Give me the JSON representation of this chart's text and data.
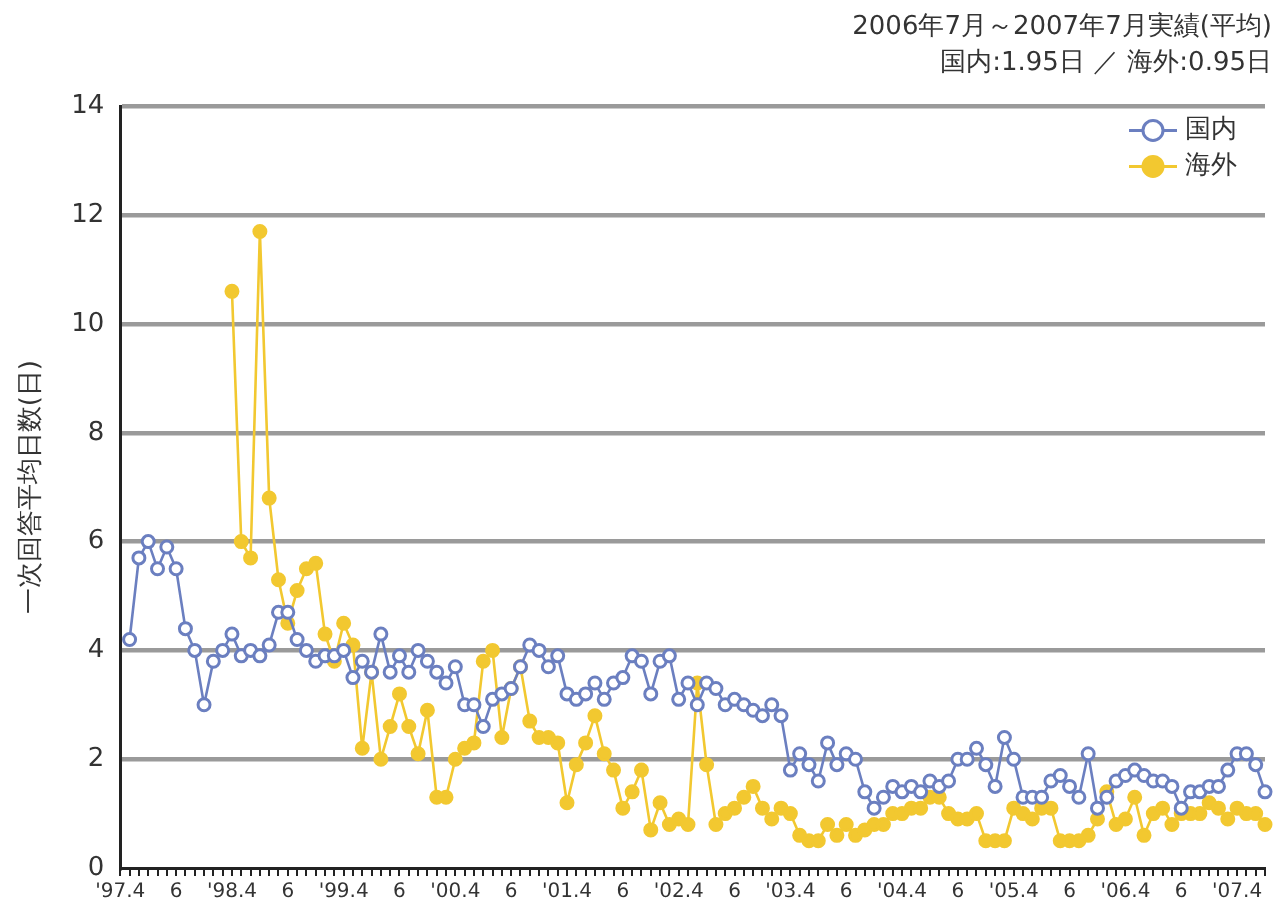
{
  "chart_data": {
    "type": "line",
    "title": "2006年7月～2007年7月実績(平均)",
    "subtitle": "国内:1.95日 ／ 海外:0.95日",
    "ylabel": "一次回答平均日数(日)",
    "categories": [
      "'97.4",
      null,
      null,
      null,
      null,
      null,
      "6",
      null,
      null,
      null,
      null,
      null,
      "'98.4",
      null,
      null,
      null,
      null,
      null,
      "6",
      null,
      null,
      null,
      null,
      null,
      "'99.4",
      null,
      null,
      null,
      null,
      null,
      "6",
      null,
      null,
      null,
      null,
      null,
      "'00.4",
      null,
      null,
      null,
      null,
      null,
      "6",
      null,
      null,
      null,
      null,
      null,
      "'01.4",
      null,
      null,
      null,
      null,
      null,
      "6",
      null,
      null,
      null,
      null,
      null,
      "'02.4",
      null,
      null,
      null,
      null,
      null,
      "6",
      null,
      null,
      null,
      null,
      null,
      "'03.4",
      null,
      null,
      null,
      null,
      null,
      "6",
      null,
      null,
      null,
      null,
      null,
      "'04.4",
      null,
      null,
      null,
      null,
      null,
      "6",
      null,
      null,
      null,
      null,
      null,
      "'05.4",
      null,
      null,
      null,
      null,
      null,
      "6",
      null,
      null,
      null,
      null,
      null,
      "'06.4",
      null,
      null,
      null,
      null,
      null,
      "6",
      null,
      null,
      null,
      null,
      null,
      "'07.4",
      null,
      null,
      null
    ],
    "series": [
      {
        "name": "国内",
        "color": "#6b7fc0",
        "values": [
          null,
          4.2,
          5.7,
          6.0,
          5.5,
          5.9,
          5.5,
          4.4,
          4.0,
          3.0,
          3.8,
          4.0,
          4.3,
          3.9,
          4.0,
          3.9,
          4.1,
          4.7,
          4.7,
          4.2,
          4.0,
          3.8,
          3.9,
          3.9,
          4.0,
          3.5,
          3.8,
          3.6,
          4.3,
          3.6,
          3.9,
          3.6,
          4.0,
          3.8,
          3.6,
          3.4,
          3.7,
          3.0,
          3.0,
          2.6,
          3.1,
          3.2,
          3.3,
          3.7,
          4.1,
          4.0,
          3.7,
          3.9,
          3.2,
          3.1,
          3.2,
          3.4,
          3.1,
          3.4,
          3.5,
          3.9,
          3.8,
          3.2,
          3.8,
          3.9,
          3.1,
          3.4,
          3.0,
          3.4,
          3.3,
          3.0,
          3.1,
          3.0,
          2.9,
          2.8,
          3.0,
          2.8,
          1.8,
          2.1,
          1.9,
          1.6,
          2.3,
          1.9,
          2.1,
          2.0,
          1.4,
          1.1,
          1.3,
          1.5,
          1.4,
          1.5,
          1.4,
          1.6,
          1.5,
          1.6,
          2.0,
          2.0,
          2.2,
          1.9,
          1.5,
          2.4,
          2.0,
          1.3,
          1.3,
          1.3,
          1.6,
          1.7,
          1.5,
          1.3,
          2.1,
          1.1,
          1.3,
          1.6,
          1.7,
          1.8,
          1.7,
          1.6,
          1.6,
          1.5,
          1.1,
          1.4,
          1.4,
          1.5,
          1.5,
          1.8,
          2.1,
          2.1,
          1.9,
          1.4
        ]
      },
      {
        "name": "海外",
        "color": "#f2c830",
        "values": [
          null,
          null,
          null,
          null,
          null,
          null,
          null,
          null,
          null,
          null,
          null,
          null,
          10.6,
          6.0,
          5.7,
          11.7,
          6.8,
          5.3,
          4.5,
          5.1,
          5.5,
          5.6,
          4.3,
          3.8,
          4.5,
          4.1,
          2.2,
          3.6,
          2.0,
          2.6,
          3.2,
          2.6,
          2.1,
          2.9,
          1.3,
          1.3,
          2.0,
          2.2,
          2.3,
          3.8,
          4.0,
          2.4,
          3.3,
          3.7,
          2.7,
          2.4,
          2.4,
          2.3,
          1.2,
          1.9,
          2.3,
          2.8,
          2.1,
          1.8,
          1.1,
          1.4,
          1.8,
          0.7,
          1.2,
          0.8,
          0.9,
          0.8,
          3.4,
          1.9,
          0.8,
          1.0,
          1.1,
          1.3,
          1.5,
          1.1,
          0.9,
          1.1,
          1.0,
          0.6,
          0.5,
          0.5,
          0.8,
          0.6,
          0.8,
          0.6,
          0.7,
          0.8,
          0.8,
          1.0,
          1.0,
          1.1,
          1.1,
          1.3,
          1.3,
          1.0,
          0.9,
          0.9,
          1.0,
          0.5,
          0.5,
          0.5,
          1.1,
          1.0,
          0.9,
          1.1,
          1.1,
          0.5,
          0.5,
          0.5,
          0.6,
          0.9,
          1.4,
          0.8,
          0.9,
          1.3,
          0.6,
          1.0,
          1.1,
          0.8,
          1.0,
          1.0,
          1.0,
          1.2,
          1.1,
          0.9,
          1.1,
          1.0,
          1.0,
          0.8
        ]
      }
    ],
    "ylim": [
      0,
      14
    ],
    "yticks": [
      0,
      2,
      4,
      6,
      8,
      10,
      12,
      14
    ],
    "grid": "y",
    "legend": "top right",
    "marker": "circle",
    "line_style": "solid"
  }
}
